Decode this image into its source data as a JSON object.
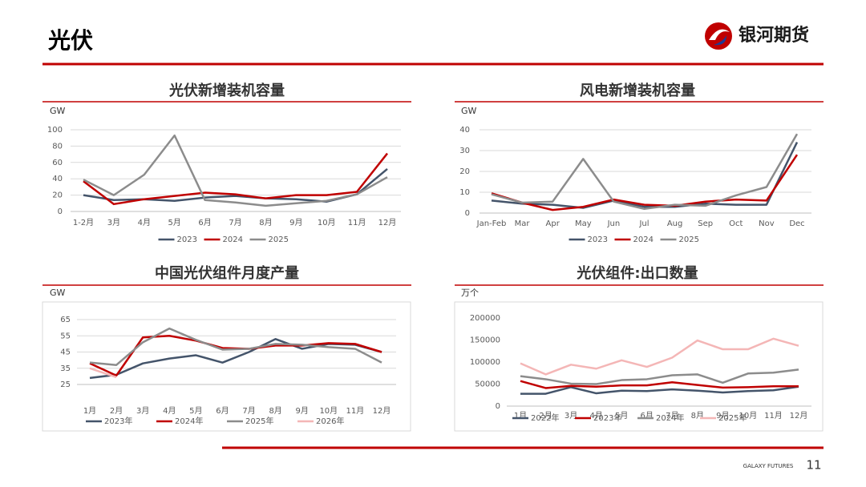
{
  "header": {
    "title": "光伏",
    "logo": "银河期货"
  },
  "footer": {
    "brand": "GALAXY FUTURES",
    "page": "11"
  },
  "chart_data": [
    {
      "type": "line",
      "title": "光伏新增装机容量",
      "y_label": "GW",
      "categories": [
        "1-2月",
        "3月",
        "4月",
        "5月",
        "6月",
        "7月",
        "8月",
        "9月",
        "10月",
        "11月",
        "12月"
      ],
      "ylim": [
        0,
        100
      ],
      "yticks": [
        0,
        20,
        40,
        60,
        80,
        100
      ],
      "grid": true,
      "series": [
        {
          "name": "2023",
          "color": "#44546a",
          "values": [
            20,
            14,
            15,
            13,
            17,
            19,
            16,
            15,
            12,
            21,
            52
          ]
        },
        {
          "name": "2024",
          "color": "#c00000",
          "values": [
            37,
            9,
            15,
            19,
            23,
            21,
            16,
            20,
            20,
            24,
            71
          ]
        },
        {
          "name": "2025",
          "color": "#8c8c8c",
          "values": [
            39,
            20,
            45,
            93,
            14,
            11,
            7,
            10,
            13,
            21,
            42
          ]
        }
      ]
    },
    {
      "type": "line",
      "title": "风电新增装机容量",
      "y_label": "GW",
      "categories": [
        "Jan-Feb",
        "Mar",
        "Apr",
        "May",
        "Jun",
        "Jul",
        "Aug",
        "Sep",
        "Oct",
        "Nov",
        "Dec"
      ],
      "ylim": [
        0,
        40
      ],
      "yticks": [
        0,
        10,
        20,
        30,
        40
      ],
      "grid": true,
      "series": [
        {
          "name": "2023",
          "color": "#44546a",
          "values": [
            6,
            4.5,
            4,
            2.5,
            6,
            3,
            3,
            4.5,
            4,
            4,
            34
          ]
        },
        {
          "name": "2024",
          "color": "#c00000",
          "values": [
            9.5,
            5,
            1.5,
            3,
            6.5,
            4,
            3.5,
            5.5,
            6.5,
            6,
            28
          ]
        },
        {
          "name": "2025",
          "color": "#8c8c8c",
          "values": [
            9,
            5,
            5.5,
            26,
            5.5,
            2,
            4,
            3.5,
            8.5,
            12.5,
            38
          ]
        }
      ]
    },
    {
      "type": "line",
      "title": "中国光伏组件月度产量",
      "y_label": "GW",
      "categories": [
        "1月",
        "2月",
        "3月",
        "4月",
        "5月",
        "6月",
        "7月",
        "8月",
        "9月",
        "10月",
        "11月",
        "12月"
      ],
      "ylim": [
        25,
        65
      ],
      "yticks": [
        25,
        35,
        45,
        55,
        65
      ],
      "grid": true,
      "series": [
        {
          "name": "2023年",
          "color": "#44546a",
          "values": [
            29,
            31,
            38,
            41,
            43,
            38.5,
            45,
            53,
            47,
            50,
            49.5,
            45
          ]
        },
        {
          "name": "2024年",
          "color": "#c00000",
          "values": [
            38,
            30.5,
            54,
            55,
            52,
            47.5,
            47,
            49,
            49,
            50.5,
            50,
            45
          ]
        },
        {
          "name": "2025年",
          "color": "#8c8c8c",
          "values": [
            38.5,
            37,
            51,
            59.5,
            52.5,
            46.5,
            47,
            50,
            49.5,
            48,
            47,
            38.5
          ]
        },
        {
          "name": "2026年",
          "color": "#f4b6b6",
          "values": [
            35,
            29.5,
            null,
            null,
            null,
            null,
            null,
            null,
            null,
            null,
            null,
            null
          ]
        }
      ]
    },
    {
      "type": "line",
      "title": "光伏组件:出口数量",
      "y_label": "万个",
      "categories": [
        "1月",
        "2月",
        "3月",
        "4月",
        "5月",
        "6月",
        "7月",
        "8月",
        "9月",
        "10月",
        "11月",
        "12月"
      ],
      "ylim": [
        0,
        200000
      ],
      "yticks": [
        0,
        50000,
        100000,
        150000,
        200000
      ],
      "grid": false,
      "series": [
        {
          "name": "2022年",
          "color": "#44546a",
          "values": [
            28000,
            28000,
            43000,
            29000,
            35000,
            34000,
            38000,
            35000,
            31000,
            34000,
            36000,
            44000
          ]
        },
        {
          "name": "2023年",
          "color": "#c00000",
          "values": [
            57000,
            41000,
            46000,
            44000,
            47000,
            47000,
            54000,
            48000,
            42000,
            43000,
            45000,
            45000
          ]
        },
        {
          "name": "2024年",
          "color": "#8c8c8c",
          "values": [
            68000,
            61000,
            51000,
            50000,
            59000,
            61000,
            70000,
            72000,
            53000,
            74000,
            76000,
            83000
          ]
        },
        {
          "name": "2025年",
          "color": "#f4b6b6",
          "values": [
            97000,
            72000,
            94000,
            85000,
            104000,
            89000,
            110000,
            149000,
            129000,
            129000,
            153000,
            137000
          ]
        }
      ]
    }
  ]
}
